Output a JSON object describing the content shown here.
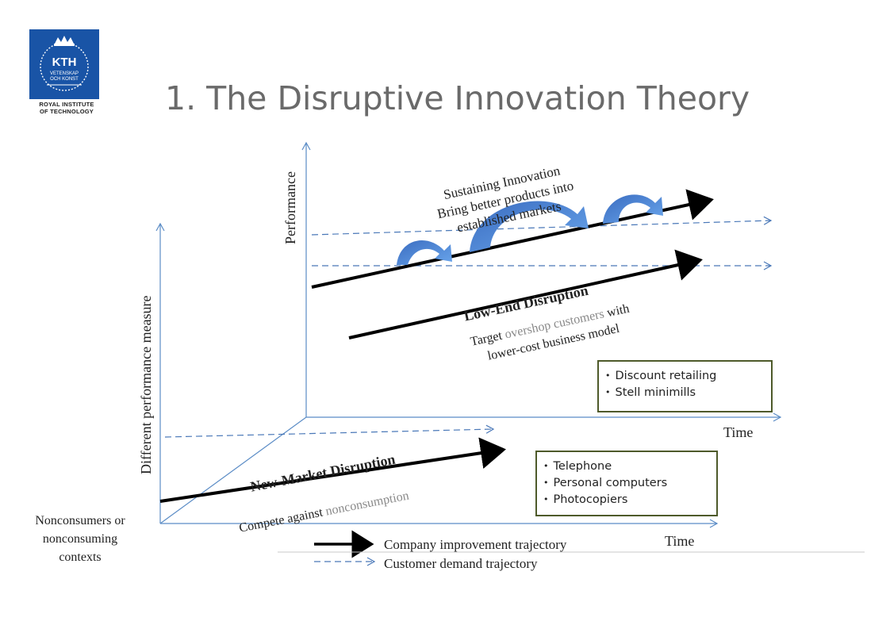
{
  "logo": {
    "text": "KTH",
    "subtitle_line1": "VETENSKAP",
    "subtitle_line2": "OCH KONST",
    "caption_line1": "ROYAL INSTITUTE",
    "caption_line2": "OF TECHNOLOGY",
    "color": "#1954a6"
  },
  "title": "1. The Disruptive Innovation Theory",
  "axes": {
    "performance_label": "Performance",
    "different_measure_label": "Different performance measure",
    "time_label_upper": "Time",
    "time_label_lower": "Time",
    "nonconsumers_line1": "Nonconsumers or",
    "nonconsumers_line2": "nonconsuming",
    "nonconsumers_line3": "contexts"
  },
  "sustaining": {
    "line1": "Sustaining Innovation",
    "line2": "Bring better products into",
    "line3": "established markets"
  },
  "low_end": {
    "title": "Low-End Disruption",
    "desc_part1": "Target ",
    "desc_highlight": "overshop customers",
    "desc_part2": " with",
    "desc_line2": "lower-cost business model",
    "examples": [
      "Discount retailing",
      "Stell minimills"
    ]
  },
  "new_market": {
    "title": "New-Market Disruption",
    "desc_part1": "Compete against ",
    "desc_highlight": "nonconsumption",
    "examples": [
      "Telephone",
      "Personal computers",
      "Photocopiers"
    ]
  },
  "legend": {
    "company": "Company improvement trajectory",
    "customer": "Customer demand trajectory"
  },
  "colors": {
    "axis": "#5b8cc6",
    "dashed": "#4a78b8",
    "company": "#000000",
    "curved_arrow": "#4a86d8",
    "box_border": "#4e5a2a",
    "muted_text": "#8a8a8a"
  }
}
